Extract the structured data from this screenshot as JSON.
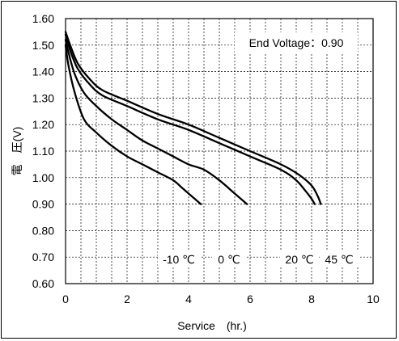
{
  "chart_data": {
    "type": "line",
    "xlabel": "Service　(hr.)",
    "ylabel": "電　圧(V)",
    "xlim": [
      0,
      10
    ],
    "ylim": [
      0.6,
      1.6
    ],
    "x_ticks": [
      0,
      2,
      4,
      6,
      8,
      10
    ],
    "y_ticks": [
      "0.60",
      "0.70",
      "0.80",
      "0.90",
      "1.00",
      "1.10",
      "1.20",
      "1.30",
      "1.40",
      "1.50",
      "1.60"
    ],
    "x_minor_step": 0.5,
    "grid": true,
    "annotation": "End Voltage：0.90",
    "series": [
      {
        "name": "-10 ℃",
        "x": [
          0,
          0.1,
          0.3,
          0.6,
          1.0,
          1.5,
          2.0,
          2.5,
          3.0,
          3.5,
          3.8,
          4.0,
          4.2,
          4.4
        ],
        "y": [
          1.5,
          1.42,
          1.32,
          1.22,
          1.17,
          1.12,
          1.08,
          1.05,
          1.02,
          0.99,
          0.96,
          0.94,
          0.92,
          0.9
        ]
      },
      {
        "name": "0 ℃",
        "x": [
          0,
          0.1,
          0.3,
          0.6,
          1.0,
          1.5,
          2.0,
          2.5,
          3.0,
          3.5,
          4.0,
          4.5,
          5.0,
          5.5,
          5.9
        ],
        "y": [
          1.52,
          1.47,
          1.39,
          1.32,
          1.27,
          1.22,
          1.18,
          1.14,
          1.11,
          1.08,
          1.05,
          1.03,
          0.99,
          0.94,
          0.9
        ]
      },
      {
        "name": "20 ℃",
        "x": [
          0,
          0.15,
          0.4,
          0.8,
          1.2,
          2.0,
          3.0,
          4.0,
          5.0,
          6.0,
          7.0,
          7.5,
          7.8,
          8.0,
          8.1
        ],
        "y": [
          1.54,
          1.48,
          1.41,
          1.35,
          1.31,
          1.27,
          1.22,
          1.18,
          1.13,
          1.08,
          1.03,
          0.99,
          0.95,
          0.92,
          0.9
        ]
      },
      {
        "name": "45 ℃",
        "x": [
          0,
          0.15,
          0.4,
          0.8,
          1.2,
          2.0,
          3.0,
          4.0,
          5.0,
          6.0,
          7.0,
          7.6,
          8.0,
          8.2,
          8.3
        ],
        "y": [
          1.55,
          1.5,
          1.43,
          1.37,
          1.33,
          1.29,
          1.24,
          1.2,
          1.15,
          1.1,
          1.05,
          1.01,
          0.97,
          0.93,
          0.9
        ]
      }
    ],
    "curve_labels": [
      "-10 ℃",
      "0 ℃",
      "20 ℃",
      "45 ℃"
    ]
  }
}
